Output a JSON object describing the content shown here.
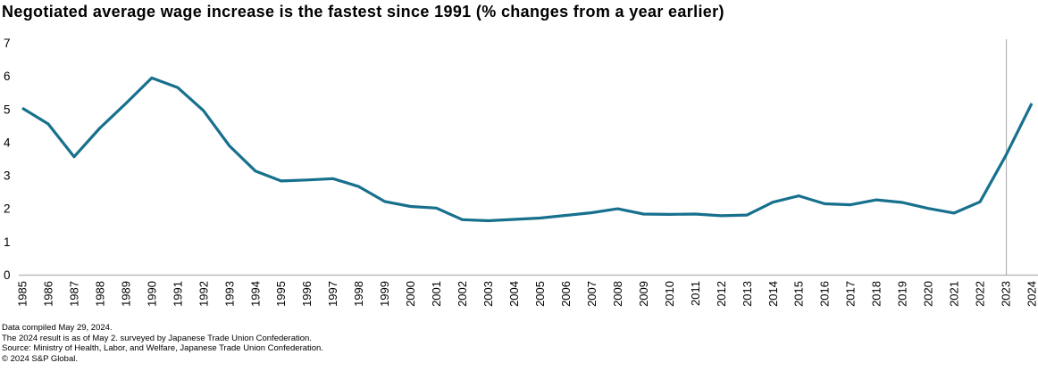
{
  "title": "Negotiated average wage increase is the fastest since 1991 (% changes from a year earlier)",
  "chart_data": {
    "type": "line",
    "title": "Negotiated average wage increase is the fastest since 1991 (% changes from a year earlier)",
    "xlabel": "",
    "ylabel": "",
    "categories": [
      "1985",
      "1986",
      "1987",
      "1988",
      "1989",
      "1990",
      "1991",
      "1992",
      "1993",
      "1994",
      "1995",
      "1996",
      "1997",
      "1998",
      "1999",
      "2000",
      "2001",
      "2002",
      "2003",
      "2004",
      "2005",
      "2006",
      "2007",
      "2008",
      "2009",
      "2010",
      "2011",
      "2012",
      "2013",
      "2014",
      "2015",
      "2016",
      "2017",
      "2018",
      "2019",
      "2020",
      "2021",
      "2022",
      "2023",
      "2024"
    ],
    "series": [
      {
        "name": "Negotiated average wage increase (% change from a year earlier)",
        "values": [
          5.03,
          4.55,
          3.56,
          4.43,
          5.17,
          5.94,
          5.65,
          4.95,
          3.89,
          3.13,
          2.83,
          2.86,
          2.9,
          2.66,
          2.21,
          2.06,
          2.01,
          1.66,
          1.63,
          1.67,
          1.71,
          1.79,
          1.87,
          1.99,
          1.83,
          1.82,
          1.83,
          1.78,
          1.8,
          2.19,
          2.38,
          2.14,
          2.11,
          2.26,
          2.18,
          2.0,
          1.86,
          2.2,
          3.6,
          5.17
        ]
      }
    ],
    "ylim": [
      0,
      7
    ],
    "yticks": [
      0,
      1,
      2,
      3,
      4,
      5,
      6,
      7
    ],
    "grid": false,
    "legend_position": "none",
    "marker_line_category": "2023",
    "line_color": "#17708d",
    "axis_color": "#b1b1b1",
    "text_color": "#000000"
  },
  "footnotes": [
    "Data compiled May 29, 2024.",
    "The 2024 result is as of May 2. surveyed by Japanese Trade Union Confederation.",
    "Source: Ministry of Health, Labor, and Welfare, Japanese Trade Union Confederation.",
    "© 2024 S&P Global."
  ]
}
